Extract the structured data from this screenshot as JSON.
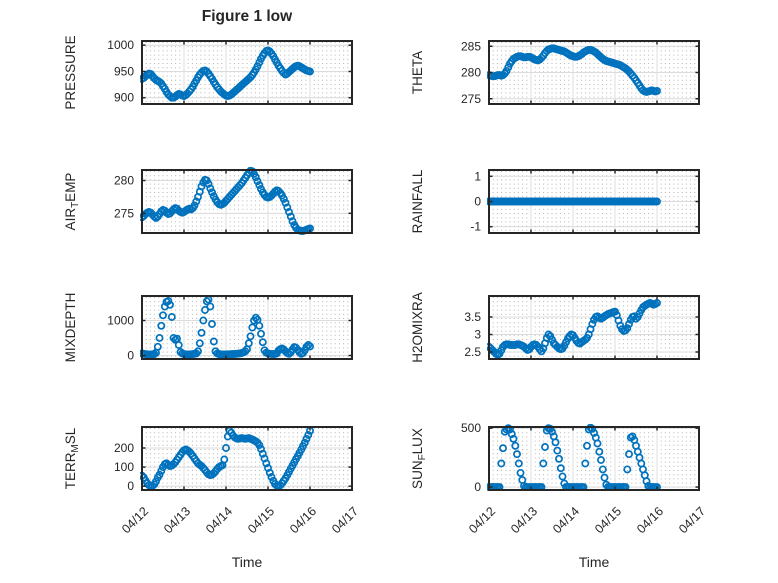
{
  "title": "Figure 1 low",
  "colors": {
    "marker": "#0072BD",
    "frame": "#262626",
    "major_grid": "#dcdcdc",
    "minor_grid": "#b3b3b3",
    "text": "#262626",
    "background": "#ffffff"
  },
  "time_axis": {
    "xlabel": "Time",
    "tick_labels": [
      "04/12",
      "04/13",
      "04/14",
      "04/15",
      "04/16",
      "04/17"
    ],
    "tick_hours": [
      0,
      24,
      48,
      72,
      96,
      120
    ],
    "xlim_hours": [
      0,
      120
    ],
    "sampling": {
      "start_hour": 0,
      "step_hours": 1
    }
  },
  "chart_data": [
    {
      "type": "scatter",
      "name": "PRESSURE",
      "ylabel_parts": [
        {
          "t": "PRESSURE",
          "sub": false
        }
      ],
      "ytick_labels": [
        "900",
        "950",
        "1000"
      ],
      "ytick_values": [
        900,
        950,
        1000
      ],
      "ylim": [
        888,
        1008
      ],
      "values": [
        936,
        938,
        941,
        944,
        946,
        945,
        941,
        937,
        934,
        932,
        930,
        927,
        922,
        917,
        911,
        906,
        903,
        900,
        900,
        902,
        905,
        907,
        906,
        904,
        903,
        905,
        908,
        912,
        916,
        921,
        927,
        933,
        939,
        944,
        948,
        951,
        952,
        950,
        946,
        941,
        936,
        930,
        925,
        920,
        916,
        912,
        909,
        906,
        904,
        903,
        904,
        906,
        909,
        912,
        915,
        918,
        921,
        924,
        927,
        930,
        933,
        936,
        939,
        943,
        948,
        954,
        960,
        967,
        974,
        980,
        985,
        989,
        990,
        988,
        984,
        979,
        973,
        967,
        961,
        956,
        951,
        947,
        944,
        946,
        949,
        952,
        955,
        958,
        960,
        961,
        960,
        958,
        956,
        954,
        952,
        951,
        950
      ]
    },
    {
      "type": "scatter",
      "name": "THETA",
      "ylabel_parts": [
        {
          "t": "THETA",
          "sub": false
        }
      ],
      "ytick_labels": [
        "275",
        "280",
        "285"
      ],
      "ytick_values": [
        275,
        280,
        285
      ],
      "ylim": [
        274,
        286
      ],
      "values": [
        279.5,
        279.4,
        279.3,
        279.3,
        279.4,
        279.5,
        279.5,
        279.4,
        279.5,
        279.8,
        280.3,
        281.0,
        281.7,
        282.2,
        282.6,
        282.8,
        283.0,
        283.1,
        283.1,
        283.0,
        282.9,
        282.9,
        283.0,
        283.0,
        282.9,
        282.7,
        282.5,
        282.4,
        282.3,
        282.5,
        282.8,
        283.2,
        283.7,
        284.1,
        284.4,
        284.5,
        284.6,
        284.6,
        284.5,
        284.4,
        284.3,
        284.2,
        284.1,
        284.0,
        283.8,
        283.6,
        283.4,
        283.2,
        283.1,
        283.0,
        283.0,
        283.1,
        283.3,
        283.5,
        283.8,
        284.0,
        284.2,
        284.3,
        284.3,
        284.2,
        284.0,
        283.8,
        283.5,
        283.2,
        282.9,
        282.6,
        282.4,
        282.2,
        282.1,
        282.0,
        281.9,
        281.8,
        281.7,
        281.6,
        281.5,
        281.4,
        281.2,
        281.0,
        280.8,
        280.5,
        280.2,
        279.8,
        279.4,
        279.0,
        278.5,
        278.0,
        277.5,
        277.0,
        276.6,
        276.4,
        276.3,
        276.4,
        276.5,
        276.6,
        276.5,
        276.4,
        276.5
      ]
    },
    {
      "type": "scatter",
      "name": "AIR_TEMP",
      "ylabel_parts": [
        {
          "t": "AIR",
          "sub": false
        },
        {
          "t": "T",
          "sub": true
        },
        {
          "t": "EMP",
          "sub": false
        }
      ],
      "ytick_labels": [
        "275",
        "280"
      ],
      "ytick_values": [
        275,
        280
      ],
      "ylim": [
        272,
        281.6
      ],
      "values": [
        274.4,
        274.6,
        274.9,
        275.1,
        275.2,
        275.1,
        274.8,
        274.5,
        274.3,
        274.5,
        274.9,
        275.3,
        275.5,
        275.4,
        275.1,
        274.9,
        275.0,
        275.3,
        275.6,
        275.8,
        275.7,
        275.4,
        275.2,
        275.1,
        275.2,
        275.4,
        275.6,
        275.7,
        275.6,
        275.8,
        276.2,
        276.8,
        277.5,
        278.3,
        279.1,
        279.7,
        280.1,
        280.0,
        279.5,
        278.8,
        278.2,
        277.6,
        277.1,
        276.7,
        276.4,
        276.3,
        276.4,
        276.6,
        276.9,
        277.2,
        277.5,
        277.8,
        278.1,
        278.4,
        278.7,
        279.0,
        279.3,
        279.6,
        280.0,
        280.4,
        280.8,
        281.2,
        281.5,
        281.4,
        281.0,
        280.5,
        279.9,
        279.3,
        278.7,
        278.2,
        277.8,
        277.5,
        277.4,
        277.5,
        277.7,
        278.0,
        278.3,
        278.5,
        278.4,
        278.1,
        277.7,
        277.2,
        276.6,
        275.9,
        275.2,
        274.5,
        273.8,
        273.2,
        272.8,
        272.5,
        272.4,
        272.3,
        272.3,
        272.4,
        272.5,
        272.6,
        272.7
      ]
    },
    {
      "type": "scatter",
      "name": "RAINFALL",
      "ylabel_parts": [
        {
          "t": "RAINFALL",
          "sub": false
        }
      ],
      "ytick_labels": [
        "-1",
        "0",
        "1"
      ],
      "ytick_values": [
        -1,
        0,
        1
      ],
      "ylim": [
        -1.25,
        1.25
      ],
      "values": [
        0,
        0,
        0,
        0,
        0,
        0,
        0,
        0,
        0,
        0,
        0,
        0,
        0,
        0,
        0,
        0,
        0,
        0,
        0,
        0,
        0,
        0,
        0,
        0,
        0,
        0,
        0,
        0,
        0,
        0,
        0,
        0,
        0,
        0,
        0,
        0,
        0,
        0,
        0,
        0,
        0,
        0,
        0,
        0,
        0,
        0,
        0,
        0,
        0,
        0,
        0,
        0,
        0,
        0,
        0,
        0,
        0,
        0,
        0,
        0,
        0,
        0,
        0,
        0,
        0,
        0,
        0,
        0,
        0,
        0,
        0,
        0,
        0,
        0,
        0,
        0,
        0,
        0,
        0,
        0,
        0,
        0,
        0,
        0,
        0,
        0,
        0,
        0,
        0,
        0,
        0,
        0,
        0,
        0,
        0,
        0,
        0
      ]
    },
    {
      "type": "scatter",
      "name": "MIXDEPTH",
      "ylabel_parts": [
        {
          "t": "MIXDEPTH",
          "sub": false
        }
      ],
      "ytick_labels": [
        "0",
        "1000"
      ],
      "ytick_values": [
        0,
        1000
      ],
      "ylim": [
        -100,
        1700
      ],
      "values": [
        60,
        50,
        40,
        35,
        30,
        30,
        35,
        40,
        80,
        250,
        500,
        850,
        1150,
        1400,
        1530,
        1560,
        1450,
        1100,
        500,
        450,
        480,
        300,
        100,
        60,
        40,
        35,
        30,
        30,
        35,
        40,
        50,
        60,
        120,
        350,
        650,
        1000,
        1300,
        1550,
        1600,
        1400,
        900,
        400,
        120,
        60,
        40,
        35,
        30,
        30,
        30,
        35,
        35,
        40,
        40,
        45,
        50,
        55,
        60,
        70,
        90,
        120,
        180,
        350,
        550,
        800,
        1000,
        1080,
        1020,
        850,
        620,
        380,
        150,
        80,
        60,
        50,
        45,
        40,
        45,
        60,
        140,
        180,
        200,
        170,
        120,
        70,
        50,
        90,
        170,
        240,
        220,
        160,
        90,
        50,
        70,
        150,
        250,
        300,
        260
      ]
    },
    {
      "type": "scatter",
      "name": "H2OMIXRA",
      "ylabel_parts": [
        {
          "t": "H2OMIXRA",
          "sub": false
        }
      ],
      "ytick_labels": [
        "2.5",
        "3",
        "3.5"
      ],
      "ytick_values": [
        2.5,
        3,
        3.5
      ],
      "ylim": [
        2.3,
        4.1
      ],
      "values": [
        2.65,
        2.6,
        2.55,
        2.5,
        2.45,
        2.42,
        2.45,
        2.55,
        2.65,
        2.7,
        2.72,
        2.72,
        2.7,
        2.7,
        2.7,
        2.7,
        2.72,
        2.72,
        2.7,
        2.68,
        2.65,
        2.6,
        2.56,
        2.58,
        2.65,
        2.7,
        2.72,
        2.7,
        2.65,
        2.58,
        2.52,
        2.6,
        2.75,
        2.9,
        3.0,
        2.95,
        2.85,
        2.75,
        2.7,
        2.65,
        2.6,
        2.58,
        2.6,
        2.68,
        2.78,
        2.88,
        2.95,
        3.0,
        2.98,
        2.9,
        2.82,
        2.76,
        2.74,
        2.78,
        2.82,
        2.85,
        2.9,
        3.0,
        3.15,
        3.3,
        3.42,
        3.5,
        3.52,
        3.48,
        3.45,
        3.48,
        3.52,
        3.55,
        3.58,
        3.6,
        3.62,
        3.64,
        3.65,
        3.55,
        3.4,
        3.25,
        3.15,
        3.1,
        3.12,
        3.18,
        3.3,
        3.42,
        3.5,
        3.52,
        3.45,
        3.5,
        3.6,
        3.7,
        3.78,
        3.82,
        3.85,
        3.88,
        3.9,
        3.88,
        3.85,
        3.87,
        3.9
      ]
    },
    {
      "type": "scatter",
      "name": "TERR_MSL",
      "ylabel_parts": [
        {
          "t": "TERR",
          "sub": false
        },
        {
          "t": "M",
          "sub": true
        },
        {
          "t": "SL",
          "sub": false
        }
      ],
      "ytick_labels": [
        "0",
        "100",
        "200"
      ],
      "ytick_values": [
        0,
        100,
        200
      ],
      "ylim": [
        -20,
        310
      ],
      "values": [
        55,
        45,
        30,
        15,
        5,
        0,
        2,
        10,
        25,
        45,
        60,
        80,
        100,
        115,
        120,
        112,
        105,
        108,
        115,
        125,
        138,
        152,
        165,
        178,
        188,
        192,
        188,
        180,
        170,
        158,
        145,
        132,
        120,
        112,
        105,
        95,
        85,
        72,
        62,
        58,
        60,
        68,
        78,
        90,
        100,
        105,
        110,
        140,
        200,
        260,
        290,
        280,
        265,
        255,
        250,
        248,
        250,
        252,
        250,
        248,
        250,
        252,
        248,
        245,
        240,
        235,
        228,
        215,
        195,
        170,
        145,
        120,
        95,
        70,
        48,
        28,
        12,
        3,
        0,
        5,
        15,
        28,
        42,
        58,
        75,
        92,
        108,
        125,
        142,
        158,
        175,
        192,
        210,
        228,
        248,
        268,
        290
      ]
    },
    {
      "type": "scatter",
      "name": "SUN_FLUX",
      "ylabel_parts": [
        {
          "t": "SUN",
          "sub": false
        },
        {
          "t": "F",
          "sub": true
        },
        {
          "t": "LUX",
          "sub": false
        }
      ],
      "ytick_labels": [
        "0",
        "500"
      ],
      "ytick_values": [
        0,
        500
      ],
      "ylim": [
        -25,
        510
      ],
      "values": [
        0,
        0,
        0,
        0,
        0,
        0,
        0,
        200,
        330,
        470,
        490,
        500,
        490,
        450,
        410,
        350,
        280,
        200,
        120,
        60,
        10,
        0,
        0,
        0,
        0,
        0,
        0,
        0,
        0,
        0,
        0,
        200,
        340,
        480,
        500,
        495,
        470,
        430,
        380,
        310,
        240,
        160,
        90,
        30,
        0,
        0,
        0,
        0,
        0,
        0,
        0,
        0,
        0,
        0,
        0,
        200,
        350,
        490,
        505,
        495,
        460,
        420,
        370,
        300,
        230,
        150,
        80,
        20,
        0,
        0,
        0,
        0,
        0,
        0,
        0,
        0,
        0,
        0,
        0,
        150,
        280,
        420,
        430,
        400,
        350,
        300,
        250,
        200,
        150,
        100,
        50,
        10,
        0,
        0,
        0,
        0,
        0
      ]
    }
  ]
}
